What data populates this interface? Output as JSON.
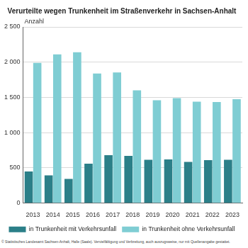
{
  "chart_data": {
    "type": "bar",
    "title": "Verurteilte wegen Trunkenheit im Straßenverkehr in Sachsen-Anhalt",
    "ylabel": "Anzahl",
    "footnote": "© Statistisches Landesamt Sachsen-Anhalt, Halle (Saale). Vervielfältigung und Verbreitung, auch auszugsweise, nur mit Quellenangabe gestattet.",
    "categories": [
      "2013",
      "2014",
      "2015",
      "2016",
      "2017",
      "2018",
      "2019",
      "2020",
      "2021",
      "2022",
      "2023"
    ],
    "series": [
      {
        "name": "in Trunkenheit mit Verkehrsunfall",
        "color": "#2b7f88",
        "values": [
          450,
          395,
          345,
          560,
          680,
          670,
          615,
          620,
          585,
          610,
          615
        ]
      },
      {
        "name": "in Trunkenheit ohne Verkehrsunfall",
        "color": "#7fcdd3",
        "values": [
          1990,
          2110,
          2140,
          1840,
          1855,
          1600,
          1460,
          1490,
          1440,
          1435,
          1475
        ]
      }
    ],
    "ylim": [
      0,
      2500
    ],
    "yticks": [
      0,
      500,
      {
        "value": 1000,
        "label": "1 000"
      },
      {
        "value": 1500,
        "label": "1 500"
      },
      {
        "value": 2000,
        "label": "2 000"
      },
      {
        "value": 2500,
        "label": "2 500"
      }
    ],
    "grid": true,
    "legend": "bottom"
  }
}
